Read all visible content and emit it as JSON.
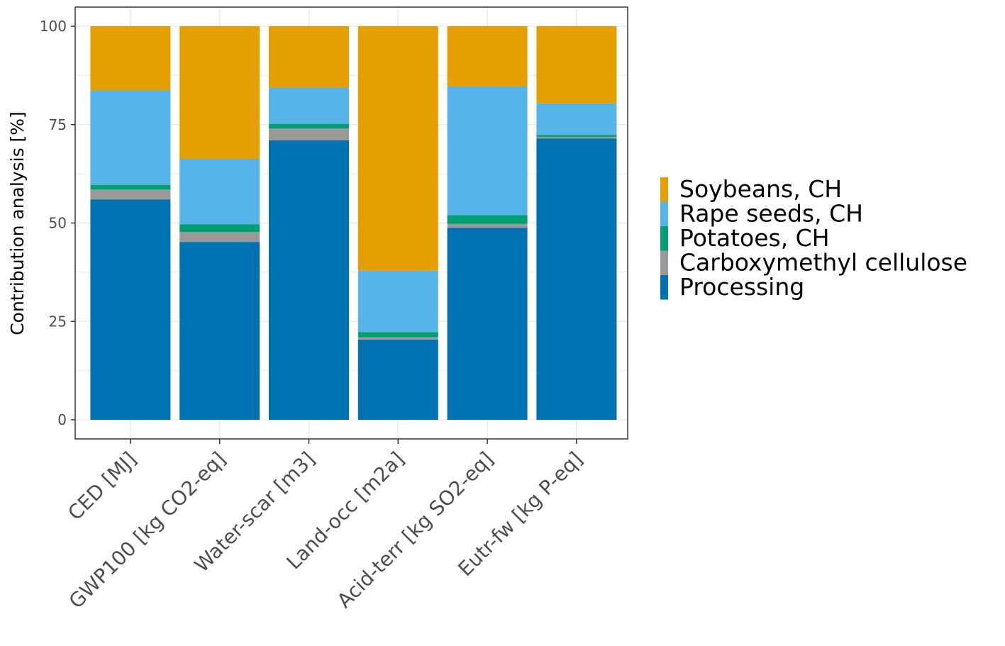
{
  "chart_data": {
    "type": "bar",
    "stacked": true,
    "title": "",
    "xlabel": "",
    "ylabel": "Contribution analysis [%]",
    "ylim": [
      0,
      100
    ],
    "yticks": [
      "0",
      "25",
      "50",
      "75",
      "100"
    ],
    "grid": true,
    "legend_position": "right",
    "categories": [
      "CED [MJ]",
      "GWP100 [kg CO2-eq]",
      "Water-scar [m3]",
      "Land-occ [m2a]",
      "Acid-terr [kg SO2-eq]",
      "Eutr-fw [kg P-eq]"
    ],
    "series": [
      {
        "name": "Processing",
        "color": "#0072B2",
        "values": [
          56.0,
          45.2,
          71.0,
          20.4,
          48.8,
          71.5
        ]
      },
      {
        "name": "Carboxymethyl cellulose",
        "color": "#999999",
        "values": [
          2.5,
          2.5,
          3.0,
          0.6,
          1.0,
          0.4
        ]
      },
      {
        "name": "Potatoes, CH",
        "color": "#009E73",
        "values": [
          1.2,
          2.0,
          1.2,
          1.3,
          2.2,
          0.5
        ]
      },
      {
        "name": "Rape seeds, CH",
        "color": "#56B4E9",
        "values": [
          24.0,
          16.6,
          9.2,
          15.6,
          32.7,
          8.0
        ]
      },
      {
        "name": "Soybeans, CH",
        "color": "#E69F00",
        "values": [
          16.3,
          33.7,
          15.6,
          62.1,
          15.3,
          19.6
        ]
      }
    ],
    "legend_order": [
      "Soybeans, CH",
      "Rape seeds, CH",
      "Potatoes, CH",
      "Carboxymethyl cellulose",
      "Processing"
    ]
  }
}
